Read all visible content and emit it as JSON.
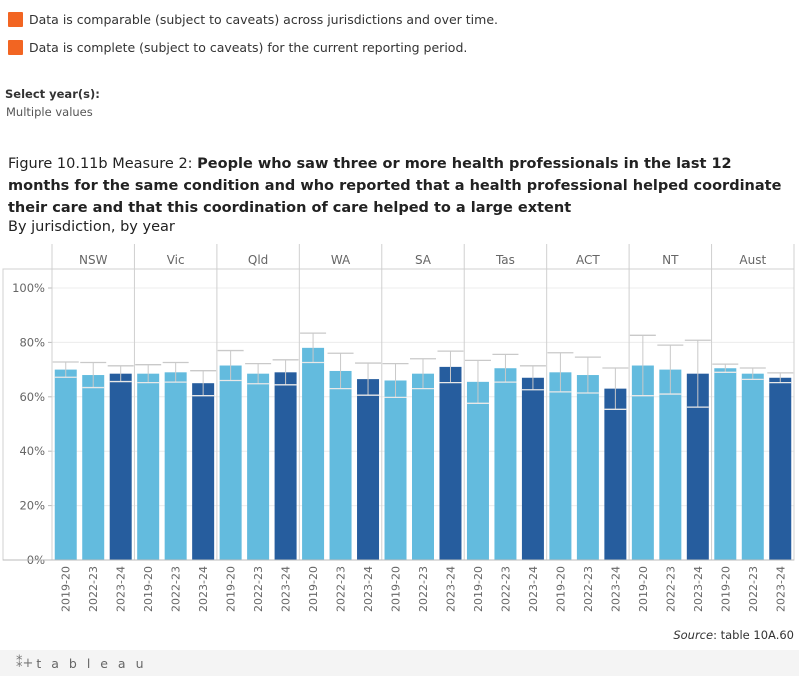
{
  "legend": {
    "items": [
      {
        "text": "Data is comparable (subject to caveats) across jurisdictions and over time.",
        "color": "#f26522"
      },
      {
        "text": "Data is complete (subject to caveats) for the current reporting period.",
        "color": "#f26522"
      }
    ]
  },
  "filter": {
    "label": "Select year(s):",
    "value": "Multiple values"
  },
  "figure": {
    "title_lead": "Figure 10.11b Measure 2: ",
    "title_bold": "People who saw three or more health professionals in the last 12 months for the same condition and who reported that a health professional helped coordinate their care and that this coordination of care helped to a large extent",
    "subtitle": "By jurisdiction, by year"
  },
  "colors": {
    "light": "#63bbde",
    "dark": "#265d9e",
    "accent": "#f26522",
    "error_bar": "#c9c9c9"
  },
  "chart_data": {
    "type": "bar",
    "jurisdictions": [
      "NSW",
      "Vic",
      "Qld",
      "WA",
      "SA",
      "Tas",
      "ACT",
      "NT",
      "Aust"
    ],
    "years": [
      "2019-20",
      "2022-23",
      "2023-24"
    ],
    "ylim": [
      0,
      100
    ],
    "yticks": [
      "0%",
      "20%",
      "40%",
      "60%",
      "80%",
      "100%"
    ],
    "grid": true,
    "series": [
      {
        "jurisdiction": "NSW",
        "values": [
          70.0,
          68.0,
          68.5
        ],
        "ci_low": [
          67.2,
          63.4,
          65.6
        ],
        "ci_high": [
          72.8,
          72.6,
          71.4
        ]
      },
      {
        "jurisdiction": "Vic",
        "values": [
          68.5,
          69.0,
          65.0
        ],
        "ci_low": [
          65.2,
          65.4,
          60.4
        ],
        "ci_high": [
          71.8,
          72.6,
          69.6
        ]
      },
      {
        "jurisdiction": "Qld",
        "values": [
          71.5,
          68.5,
          69.0
        ],
        "ci_low": [
          66.0,
          64.8,
          64.4
        ],
        "ci_high": [
          77.0,
          72.2,
          73.6
        ]
      },
      {
        "jurisdiction": "WA",
        "values": [
          78.0,
          69.5,
          66.5
        ],
        "ci_low": [
          72.6,
          63.0,
          60.6
        ],
        "ci_high": [
          83.4,
          76.0,
          72.4
        ]
      },
      {
        "jurisdiction": "SA",
        "values": [
          66.0,
          68.5,
          71.0
        ],
        "ci_low": [
          59.8,
          63.0,
          65.2
        ],
        "ci_high": [
          72.2,
          74.0,
          76.8
        ]
      },
      {
        "jurisdiction": "Tas",
        "values": [
          65.5,
          70.5,
          67.0
        ],
        "ci_low": [
          57.6,
          65.4,
          62.6
        ],
        "ci_high": [
          73.4,
          75.6,
          71.4
        ]
      },
      {
        "jurisdiction": "ACT",
        "values": [
          69.0,
          68.0,
          63.0
        ],
        "ci_low": [
          61.8,
          61.4,
          55.4
        ],
        "ci_high": [
          76.2,
          74.6,
          70.6
        ]
      },
      {
        "jurisdiction": "NT",
        "values": [
          71.5,
          70.0,
          68.5
        ],
        "ci_low": [
          60.4,
          61.0,
          56.2
        ],
        "ci_high": [
          82.6,
          79.0,
          80.8
        ]
      },
      {
        "jurisdiction": "Aust",
        "values": [
          70.5,
          68.5,
          67.0
        ],
        "ci_low": [
          69.0,
          66.4,
          65.2
        ],
        "ci_high": [
          72.0,
          70.6,
          68.8
        ]
      }
    ]
  },
  "source": {
    "label": "Source",
    "text": ": table 10A.60"
  },
  "footer": {
    "brand": "t a b l e a u",
    "mark": "⁑+"
  }
}
